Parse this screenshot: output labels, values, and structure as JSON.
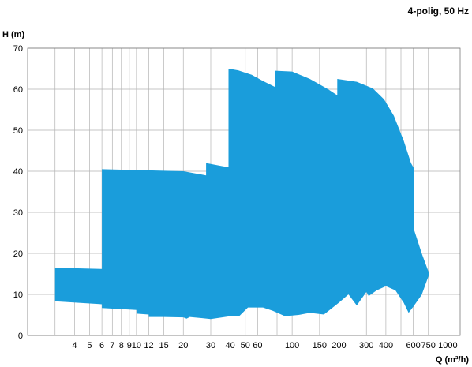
{
  "chart_data": {
    "type": "area",
    "heading": "4-polig, 50 Hz",
    "xlabel": "Q (m³/h)",
    "ylabel": "H (m)",
    "x_scale": "log",
    "xlim": [
      2,
      1200
    ],
    "ylim": [
      0,
      70
    ],
    "grid": true,
    "fill_color": "#1a9ddb",
    "x_ticks": [
      {
        "v": 4,
        "label": "4"
      },
      {
        "v": 5,
        "label": "5"
      },
      {
        "v": 6,
        "label": "6"
      },
      {
        "v": 7,
        "label": "7"
      },
      {
        "v": 8,
        "label": "8"
      },
      {
        "v": 9,
        "label": "9"
      },
      {
        "v": 10,
        "label": "10"
      },
      {
        "v": 12,
        "label": "12"
      },
      {
        "v": 15,
        "label": "15"
      },
      {
        "v": 20,
        "label": "20"
      },
      {
        "v": 30,
        "label": "30"
      },
      {
        "v": 40,
        "label": "40"
      },
      {
        "v": 50,
        "label": "50"
      },
      {
        "v": 60,
        "label": "60"
      },
      {
        "v": 100,
        "label": "100"
      },
      {
        "v": 150,
        "label": "150"
      },
      {
        "v": 200,
        "label": "200"
      },
      {
        "v": 300,
        "label": "300"
      },
      {
        "v": 400,
        "label": "400"
      },
      {
        "v": 600,
        "label": "600"
      },
      {
        "v": 750,
        "label": "750"
      },
      {
        "v": 1000,
        "label": "1000"
      }
    ],
    "x_gridlines": [
      3,
      4,
      5,
      6,
      7,
      8,
      9,
      10,
      12,
      15,
      20,
      30,
      40,
      50,
      60,
      80,
      100,
      150,
      200,
      300,
      400,
      500,
      600,
      750,
      1000
    ],
    "y_ticks": [
      0,
      10,
      20,
      30,
      40,
      50,
      60,
      70
    ],
    "upper_boundary": [
      [
        3,
        16.5
      ],
      [
        6,
        16.2
      ],
      [
        6,
        40.5
      ],
      [
        20,
        40.0
      ],
      [
        28,
        39.0
      ],
      [
        28,
        42.0
      ],
      [
        36,
        41.2
      ],
      [
        39,
        41.0
      ],
      [
        39,
        65.0
      ],
      [
        45,
        64.6
      ],
      [
        55,
        63.5
      ],
      [
        65,
        62.0
      ],
      [
        78,
        60.5
      ],
      [
        78,
        64.5
      ],
      [
        100,
        64.3
      ],
      [
        130,
        62.5
      ],
      [
        170,
        60.0
      ],
      [
        195,
        58.5
      ],
      [
        195,
        62.5
      ],
      [
        260,
        61.8
      ],
      [
        330,
        60.2
      ],
      [
        390,
        57.5
      ],
      [
        450,
        53.5
      ],
      [
        520,
        47.5
      ],
      [
        580,
        42.0
      ],
      [
        610,
        40.5
      ],
      [
        610,
        25.5
      ],
      [
        680,
        20.0
      ],
      [
        760,
        15.0
      ]
    ],
    "lower_boundary": [
      [
        3,
        8.3
      ],
      [
        6,
        7.6
      ],
      [
        6,
        6.7
      ],
      [
        10,
        6.2
      ],
      [
        10,
        5.3
      ],
      [
        12,
        5.1
      ],
      [
        12,
        4.5
      ],
      [
        15,
        4.5
      ],
      [
        20,
        4.4
      ],
      [
        21,
        4.1
      ],
      [
        22,
        4.5
      ],
      [
        30,
        4.0
      ],
      [
        40,
        4.7
      ],
      [
        46,
        4.8
      ],
      [
        52,
        6.8
      ],
      [
        65,
        6.8
      ],
      [
        75,
        6.0
      ],
      [
        90,
        4.7
      ],
      [
        110,
        5.0
      ],
      [
        130,
        5.5
      ],
      [
        160,
        5.1
      ],
      [
        200,
        8.0
      ],
      [
        230,
        10.0
      ],
      [
        260,
        7.3
      ],
      [
        300,
        10.6
      ],
      [
        310,
        9.6
      ],
      [
        350,
        11.0
      ],
      [
        400,
        12.0
      ],
      [
        460,
        11.0
      ],
      [
        520,
        8.0
      ],
      [
        560,
        5.5
      ],
      [
        600,
        7.0
      ],
      [
        680,
        9.9
      ],
      [
        760,
        15.0
      ]
    ]
  }
}
